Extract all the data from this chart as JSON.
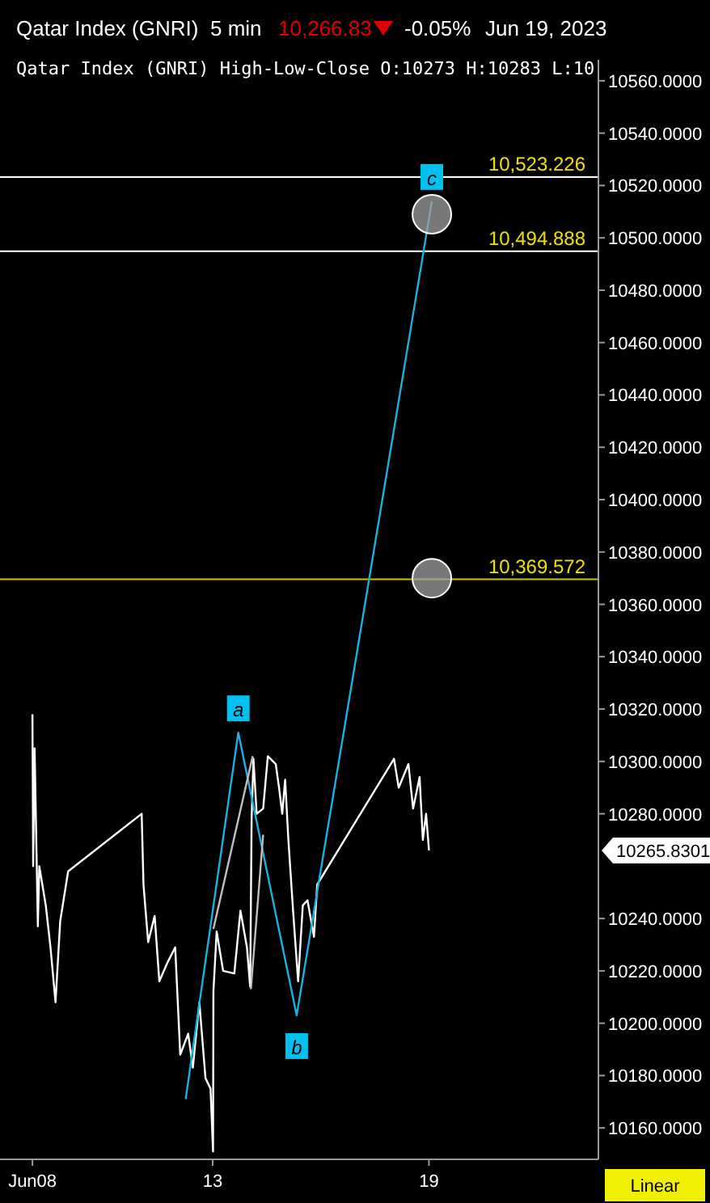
{
  "chart_data": {
    "type": "line",
    "title": "Qatar Index  (GNRI)",
    "subtitle": "Qatar Index (GNRI) High-Low-Close O:10273 H:10283 L:10",
    "annotations": [
      "5 min",
      "10,266.83",
      "-0.05%",
      "Jun 19, 2023",
      "Linear",
      "10265.8301",
      {
        "text": "a",
        "x": 13.71,
        "y": 10311
      },
      {
        "text": "b",
        "x": 15.33,
        "y": 10203
      },
      {
        "text": "c",
        "x": 19.08,
        "y": 10514
      }
    ],
    "xlim": [
      7.1,
      23.7
    ],
    "xticks": [
      {
        "value": 8,
        "label": "Jun08"
      },
      13,
      19
    ],
    "ylim": [
      10148,
      10568
    ],
    "yticks": [
      {
        "value": 10160,
        "label": "10160.0000"
      },
      {
        "value": 10180,
        "label": "10180.0000"
      },
      {
        "value": 10200,
        "label": "10200.0000"
      },
      {
        "value": 10220,
        "label": "10220.0000"
      },
      {
        "value": 10240,
        "label": "10240.0000"
      },
      {
        "value": 10280,
        "label": "10280.0000"
      },
      {
        "value": 10300,
        "label": "10300.0000"
      },
      {
        "value": 10320,
        "label": "10320.0000"
      },
      {
        "value": 10340,
        "label": "10340.0000"
      },
      {
        "value": 10360,
        "label": "10360.0000"
      },
      {
        "value": 10380,
        "label": "10380.0000"
      },
      {
        "value": 10400,
        "label": "10400.0000"
      },
      {
        "value": 10420,
        "label": "10420.0000"
      },
      {
        "value": 10440,
        "label": "10440.0000"
      },
      {
        "value": 10460,
        "label": "10460.0000"
      },
      {
        "value": 10480,
        "label": "10480.0000"
      },
      {
        "value": 10500,
        "label": "10500.0000"
      },
      {
        "value": 10520,
        "label": "10520.0000"
      },
      {
        "value": 10540,
        "label": "10540.0000"
      },
      {
        "value": 10560,
        "label": "10560.0000"
      }
    ],
    "grid": false,
    "ref_lines": [
      {
        "axis": "y",
        "value": 10523.226,
        "label": "10,523.226",
        "color": "#ffffff"
      },
      {
        "axis": "y",
        "value": 10494.888,
        "label": "10,494.888",
        "color": "#ffffff"
      },
      {
        "axis": "y",
        "value": 10369.572,
        "label": "10,369.572",
        "color": "#d4c000"
      }
    ],
    "series": [
      {
        "color": "#ffffff",
        "x": [
          8,
          8.02,
          8.06,
          8.15,
          8.19,
          8.37,
          8.5,
          8.64,
          8.77,
          8.99,
          11.03,
          11.08,
          11.21,
          11.39,
          11.52,
          11.74,
          11.96,
          12.1,
          12.32,
          12.45,
          12.63,
          12.8,
          12.94,
          13.01,
          13.02,
          13.11,
          13.29,
          13.6,
          13.77,
          13.95,
          14.04,
          14.08,
          14.13,
          14.22,
          14.4,
          14.53,
          14.75,
          14.84,
          14.93,
          15.01,
          15.1,
          15.23,
          15.37,
          15.5,
          15.63,
          15.81,
          15.9,
          18.03,
          18.16,
          18.43,
          18.56,
          18.74,
          18.83,
          18.92,
          19.0
        ],
        "values": [
          10318,
          10260,
          10305,
          10237,
          10260,
          10245,
          10229,
          10208,
          10239,
          10258,
          10280,
          10253,
          10231,
          10241,
          10216,
          10223,
          10229,
          10188,
          10196,
          10183,
          10208,
          10179,
          10175,
          10151,
          10212,
          10235,
          10220,
          10219,
          10243,
          10229,
          10214,
          10278,
          10301,
          10280,
          10282,
          10302,
          10299,
          10290,
          10280,
          10293,
          10270,
          10243,
          10216,
          10245,
          10247,
          10233,
          10253,
          10301,
          10290,
          10299,
          10282,
          10294,
          10270,
          10280,
          10266
        ]
      },
      {
        "color": "#1ab0e0",
        "x": [
          12.25,
          13.71,
          15.33,
          19.08
        ],
        "values": [
          10171,
          10311,
          10203,
          10514
        ]
      },
      {
        "color": "#c0c0c0",
        "x": [
          13.02,
          14.11
        ],
        "values": [
          10236,
          10302
        ]
      },
      {
        "color": "#c0c0c0",
        "x": [
          14.06,
          14.4
        ],
        "values": [
          10213,
          10272
        ]
      },
      {
        "type": "scatter",
        "marker": "circle",
        "color": "#a0a0a0",
        "x": [
          19.08,
          19.08
        ],
        "values": [
          10509,
          10370
        ]
      }
    ]
  }
}
